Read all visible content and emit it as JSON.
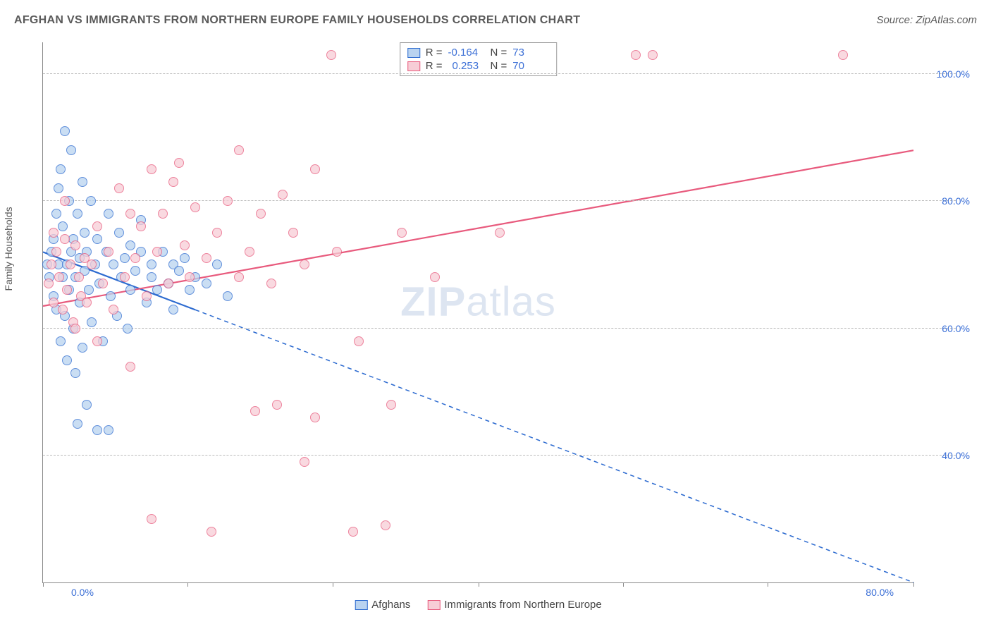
{
  "title": "AFGHAN VS IMMIGRANTS FROM NORTHERN EUROPE FAMILY HOUSEHOLDS CORRELATION CHART",
  "source": "Source: ZipAtlas.com",
  "ylabel": "Family Households",
  "watermark_a": "ZIP",
  "watermark_b": "atlas",
  "chart": {
    "type": "scatter",
    "background_color": "#ffffff",
    "grid_color": "#bbbbbb",
    "axis_color": "#888888",
    "tick_label_color": "#3b6fd6",
    "xlim": [
      0,
      80
    ],
    "ylim": [
      20,
      105
    ],
    "yticks": [
      40,
      60,
      80,
      100
    ],
    "ytick_labels": [
      "40.0%",
      "60.0%",
      "80.0%",
      "100.0%"
    ],
    "xtick_label_left": "0.0%",
    "xtick_label_right": "80.0%",
    "xtick_positions": [
      0,
      13.3,
      26.6,
      40,
      53.3,
      66.6,
      80
    ],
    "marker_radius": 7,
    "marker_border_width": 1.5,
    "line_width": 2.2,
    "series": [
      {
        "name": "Afghans",
        "fill": "#b9d3f0",
        "stroke": "#2d6bd0",
        "r_label": "R =",
        "r_value": "-0.164",
        "n_label": "N =",
        "n_value": "73",
        "trend": {
          "x1": 0,
          "y1": 72,
          "x2": 80,
          "y2": 20,
          "solid_until_x": 14
        },
        "points": [
          [
            0.4,
            70
          ],
          [
            0.6,
            68
          ],
          [
            0.8,
            72
          ],
          [
            1.0,
            65
          ],
          [
            1.0,
            74
          ],
          [
            1.2,
            78
          ],
          [
            1.2,
            63
          ],
          [
            1.4,
            82
          ],
          [
            1.4,
            70
          ],
          [
            1.6,
            85
          ],
          [
            1.6,
            58
          ],
          [
            1.8,
            68
          ],
          [
            1.8,
            76
          ],
          [
            2.0,
            91
          ],
          [
            2.0,
            62
          ],
          [
            2.2,
            70
          ],
          [
            2.2,
            55
          ],
          [
            2.4,
            80
          ],
          [
            2.4,
            66
          ],
          [
            2.6,
            72
          ],
          [
            2.6,
            88
          ],
          [
            2.8,
            60
          ],
          [
            2.8,
            74
          ],
          [
            3.0,
            68
          ],
          [
            3.0,
            53
          ],
          [
            3.2,
            78
          ],
          [
            3.2,
            45
          ],
          [
            3.4,
            71
          ],
          [
            3.4,
            64
          ],
          [
            3.6,
            83
          ],
          [
            3.6,
            57
          ],
          [
            3.8,
            69
          ],
          [
            3.8,
            75
          ],
          [
            4.0,
            48
          ],
          [
            4.0,
            72
          ],
          [
            4.2,
            66
          ],
          [
            4.4,
            80
          ],
          [
            4.5,
            61
          ],
          [
            4.8,
            70
          ],
          [
            5.0,
            74
          ],
          [
            5.0,
            44
          ],
          [
            5.2,
            67
          ],
          [
            5.5,
            58
          ],
          [
            5.8,
            72
          ],
          [
            6.0,
            78
          ],
          [
            6.0,
            44
          ],
          [
            6.2,
            65
          ],
          [
            6.5,
            70
          ],
          [
            6.8,
            62
          ],
          [
            7.0,
            75
          ],
          [
            7.2,
            68
          ],
          [
            7.5,
            71
          ],
          [
            7.8,
            60
          ],
          [
            8.0,
            73
          ],
          [
            8.0,
            66
          ],
          [
            8.5,
            69
          ],
          [
            9.0,
            72
          ],
          [
            9.0,
            77
          ],
          [
            9.5,
            64
          ],
          [
            10.0,
            70
          ],
          [
            10.0,
            68
          ],
          [
            10.5,
            66
          ],
          [
            11.0,
            72
          ],
          [
            11.5,
            67
          ],
          [
            12.0,
            70
          ],
          [
            12.0,
            63
          ],
          [
            12.5,
            69
          ],
          [
            13.0,
            71
          ],
          [
            13.5,
            66
          ],
          [
            14.0,
            68
          ],
          [
            15.0,
            67
          ],
          [
            16.0,
            70
          ],
          [
            17.0,
            65
          ]
        ]
      },
      {
        "name": "Immigrants from Northern Europe",
        "fill": "#f7cdd6",
        "stroke": "#e85a7d",
        "r_label": "R =",
        "r_value": "0.253",
        "n_label": "N =",
        "n_value": "70",
        "trend": {
          "x1": 0,
          "y1": 63.5,
          "x2": 80,
          "y2": 88,
          "solid_until_x": 80
        },
        "points": [
          [
            0.5,
            67
          ],
          [
            0.8,
            70
          ],
          [
            1.0,
            64
          ],
          [
            1.2,
            72
          ],
          [
            1.5,
            68
          ],
          [
            1.8,
            63
          ],
          [
            2.0,
            74
          ],
          [
            2.2,
            66
          ],
          [
            2.5,
            70
          ],
          [
            2.8,
            61
          ],
          [
            3.0,
            73
          ],
          [
            3.3,
            68
          ],
          [
            3.5,
            65
          ],
          [
            3.8,
            71
          ],
          [
            4.0,
            64
          ],
          [
            4.5,
            70
          ],
          [
            5.0,
            76
          ],
          [
            5.0,
            58
          ],
          [
            5.5,
            67
          ],
          [
            6.0,
            72
          ],
          [
            6.5,
            63
          ],
          [
            7.0,
            82
          ],
          [
            7.5,
            68
          ],
          [
            8.0,
            78
          ],
          [
            8.0,
            54
          ],
          [
            8.5,
            71
          ],
          [
            9.0,
            76
          ],
          [
            9.5,
            65
          ],
          [
            10.0,
            85
          ],
          [
            10.0,
            30
          ],
          [
            10.5,
            72
          ],
          [
            11.0,
            78
          ],
          [
            11.5,
            67
          ],
          [
            12.0,
            83
          ],
          [
            12.5,
            86
          ],
          [
            13.0,
            73
          ],
          [
            13.5,
            68
          ],
          [
            14.0,
            79
          ],
          [
            15.0,
            71
          ],
          [
            15.5,
            28
          ],
          [
            16.0,
            75
          ],
          [
            17.0,
            80
          ],
          [
            18.0,
            68
          ],
          [
            18.0,
            88
          ],
          [
            19.0,
            72
          ],
          [
            19.5,
            47
          ],
          [
            20.0,
            78
          ],
          [
            21.0,
            67
          ],
          [
            21.5,
            48
          ],
          [
            22.0,
            81
          ],
          [
            23.0,
            75
          ],
          [
            24.0,
            70
          ],
          [
            24.0,
            39
          ],
          [
            25.0,
            85
          ],
          [
            25.0,
            46
          ],
          [
            26.5,
            103
          ],
          [
            27.0,
            72
          ],
          [
            28.5,
            28
          ],
          [
            29.0,
            58
          ],
          [
            31.5,
            29
          ],
          [
            32.0,
            48
          ],
          [
            33.0,
            75
          ],
          [
            36.0,
            68
          ],
          [
            42.0,
            75
          ],
          [
            54.5,
            103
          ],
          [
            56.0,
            103
          ],
          [
            73.5,
            103
          ],
          [
            1.0,
            75
          ],
          [
            2.0,
            80
          ],
          [
            3.0,
            60
          ]
        ]
      }
    ]
  },
  "legend_bottom": [
    {
      "label": "Afghans",
      "fill": "#b9d3f0",
      "stroke": "#2d6bd0"
    },
    {
      "label": "Immigrants from Northern Europe",
      "fill": "#f7cdd6",
      "stroke": "#e85a7d"
    }
  ]
}
